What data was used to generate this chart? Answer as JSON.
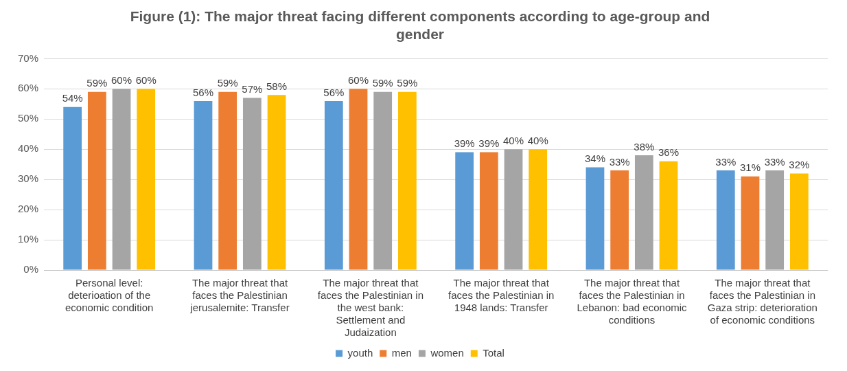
{
  "chart_data": {
    "type": "bar",
    "title": "Figure (1): The major threat facing different components according to age-group and gender",
    "categories": [
      "Personal level: deterioation of the economic condition",
      "The major threat that faces the Palestinian jerusalemite: Transfer",
      "The major threat that faces the Palestinian in the west bank: Settlement and Judaization",
      "The major threat that faces the Palestinian in 1948 lands: Transfer",
      "The major threat that faces the Palestinian in Lebanon: bad economic conditions",
      "The major threat that faces the Palestinian in Gaza strip: deterioration of economic conditions"
    ],
    "series": [
      {
        "name": "youth",
        "color": "#5b9bd5",
        "values": [
          54,
          56,
          56,
          39,
          34,
          33
        ],
        "value_labels": [
          "54%",
          "56%",
          "56%",
          "39%",
          "34%",
          "33%"
        ]
      },
      {
        "name": "men",
        "color": "#ed7d31",
        "values": [
          59,
          59,
          60,
          39,
          33,
          31
        ],
        "value_labels": [
          "59%",
          "59%",
          "60%",
          "39%",
          "33%",
          "31%"
        ]
      },
      {
        "name": "women",
        "color": "#a5a5a5",
        "values": [
          60,
          57,
          59,
          40,
          38,
          33
        ],
        "value_labels": [
          "60%",
          "57%",
          "59%",
          "40%",
          "38%",
          "33%"
        ]
      },
      {
        "name": "Total",
        "color": "#ffc000",
        "values": [
          60,
          58,
          59,
          40,
          36,
          32
        ],
        "value_labels": [
          "60%",
          "58%",
          "59%",
          "40%",
          "36%",
          "32%"
        ]
      }
    ],
    "ylim": [
      0,
      70
    ],
    "yticks": [
      {
        "value": 0,
        "label": "0%"
      },
      {
        "value": 10,
        "label": "10%"
      },
      {
        "value": 20,
        "label": "20%"
      },
      {
        "value": 30,
        "label": "30%"
      },
      {
        "value": 40,
        "label": "40%"
      },
      {
        "value": 50,
        "label": "50%"
      },
      {
        "value": 60,
        "label": "60%"
      },
      {
        "value": 70,
        "label": "70%"
      }
    ],
    "grid": "y",
    "legend": "bottom"
  }
}
